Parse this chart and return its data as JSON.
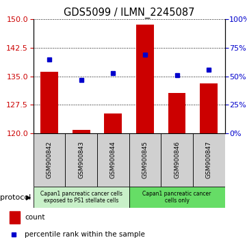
{
  "title": "GDS5099 / ILMN_2245087",
  "samples": [
    "GSM900842",
    "GSM900843",
    "GSM900844",
    "GSM900845",
    "GSM900846",
    "GSM900847"
  ],
  "counts": [
    136.2,
    120.8,
    125.2,
    148.6,
    130.5,
    133.1
  ],
  "percentile_ranks": [
    65,
    47,
    53,
    69,
    51,
    56
  ],
  "ylim_left": [
    120,
    150
  ],
  "ylim_right": [
    0,
    100
  ],
  "yticks_left": [
    120,
    127.5,
    135,
    142.5,
    150
  ],
  "yticks_right": [
    0,
    25,
    50,
    75,
    100
  ],
  "bar_color": "#cc0000",
  "dot_color": "#0000cc",
  "group1_color": "#c8f0c8",
  "group2_color": "#66dd66",
  "sample_box_color": "#d0d0d0",
  "background_color": "#ffffff",
  "tick_label_color_left": "#cc0000",
  "tick_label_color_right": "#0000cc",
  "group1_text": "Capan1 pancreatic cancer cells\nexposed to PS1 stellate cells",
  "group2_text": "Capan1 pancreatic cancer\ncells only"
}
